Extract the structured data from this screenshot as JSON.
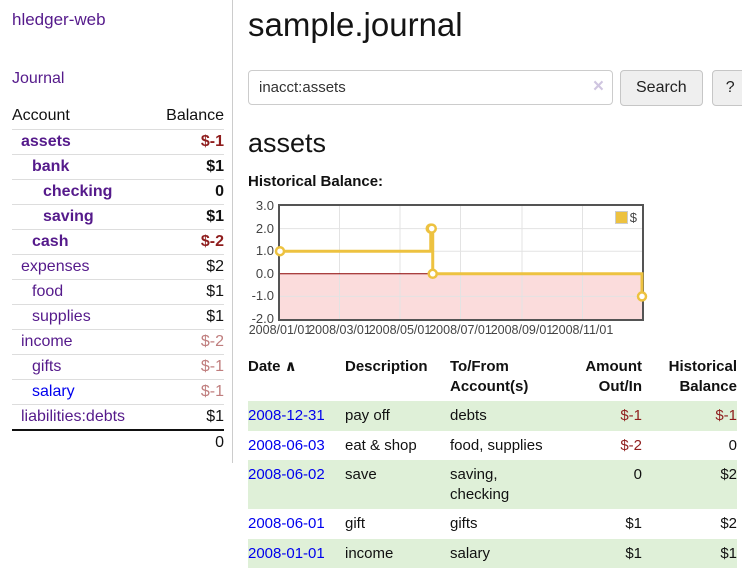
{
  "app": {
    "brand": "hledger-web"
  },
  "sidebar": {
    "nav_journal": "Journal",
    "accounts_table": {
      "col_account": "Account",
      "col_balance": "Balance",
      "rows": [
        {
          "name": "assets",
          "depth": 1,
          "bold": true,
          "balance": "$-1",
          "balance_tone": "neg-strong",
          "link_state": "visited"
        },
        {
          "name": "bank",
          "depth": 2,
          "bold": true,
          "balance": "$1",
          "balance_tone": "pos",
          "link_state": "visited"
        },
        {
          "name": "checking",
          "depth": 3,
          "bold": true,
          "balance": "0",
          "balance_tone": "pos",
          "link_state": "visited"
        },
        {
          "name": "saving",
          "depth": 3,
          "bold": true,
          "balance": "$1",
          "balance_tone": "pos",
          "link_state": "visited"
        },
        {
          "name": "cash",
          "depth": 2,
          "bold": true,
          "balance": "$-2",
          "balance_tone": "neg-strong",
          "link_state": "visited"
        },
        {
          "name": "expenses",
          "depth": 1,
          "bold": false,
          "balance": "$2",
          "balance_tone": "pos",
          "link_state": "visited"
        },
        {
          "name": "food",
          "depth": 2,
          "bold": false,
          "balance": "$1",
          "balance_tone": "pos",
          "link_state": "visited"
        },
        {
          "name": "supplies",
          "depth": 2,
          "bold": false,
          "balance": "$1",
          "balance_tone": "pos",
          "link_state": "visited"
        },
        {
          "name": "income",
          "depth": 1,
          "bold": false,
          "balance": "$-2",
          "balance_tone": "neg-soft",
          "link_state": "visited"
        },
        {
          "name": "gifts",
          "depth": 2,
          "bold": false,
          "balance": "$-1",
          "balance_tone": "neg-soft",
          "link_state": "visited"
        },
        {
          "name": "salary",
          "depth": 2,
          "bold": false,
          "balance": "$-1",
          "balance_tone": "neg-soft",
          "link_state": "unvisited"
        },
        {
          "name": "liabilities:debts",
          "depth": 1,
          "bold": false,
          "balance": "$1",
          "balance_tone": "pos",
          "link_state": "visited"
        }
      ],
      "total": "0"
    }
  },
  "header": {
    "title": "sample.journal"
  },
  "search": {
    "value": "inacct:assets",
    "clear_icon": "×",
    "search_button": "Search",
    "help_button": "?"
  },
  "account_view": {
    "heading": "assets",
    "chart_title": "Historical Balance:"
  },
  "chart_data": {
    "type": "line",
    "step": true,
    "title": "Historical Balance",
    "x_range": [
      "2008-01-01",
      "2008-12-31"
    ],
    "ylim": [
      -2,
      3
    ],
    "y_ticks": [
      "3.0",
      "2.0",
      "1.0",
      "0.0",
      "-1.0",
      "-2.0"
    ],
    "x_ticks": [
      {
        "date": "2008-01-01",
        "label": "2008/01/01"
      },
      {
        "date": "2008-03-01",
        "label": "2008/03/01"
      },
      {
        "date": "2008-05-01",
        "label": "2008/05/01"
      },
      {
        "date": "2008-07-01",
        "label": "2008/07/01"
      },
      {
        "date": "2008-09-01",
        "label": "2008/09/01"
      },
      {
        "date": "2008-11-01",
        "label": "2008/11/01"
      }
    ],
    "series": [
      {
        "name": "$",
        "color": "#edc240",
        "points": [
          [
            "2008-01-01",
            1
          ],
          [
            "2008-06-01",
            2
          ],
          [
            "2008-06-02",
            2
          ],
          [
            "2008-06-03",
            0
          ],
          [
            "2008-12-31",
            -1
          ]
        ]
      }
    ],
    "legend_position": "top-right",
    "grid": true,
    "gridline_color": "#e3e3e3",
    "negative_region_fill": "#fbdcdc",
    "zero_line_color": "#8b0000",
    "border_color": "#545454"
  },
  "register": {
    "columns": [
      {
        "id": "date",
        "line1": "Date",
        "line2": "",
        "align": "left",
        "sort_indicator": "∧"
      },
      {
        "id": "description",
        "line1": "Description",
        "line2": "",
        "align": "left"
      },
      {
        "id": "accounts",
        "line1": "To/From",
        "line2": "Account(s)",
        "align": "left"
      },
      {
        "id": "amount",
        "line1": "Amount",
        "line2": "Out/In",
        "align": "right"
      },
      {
        "id": "balance",
        "line1": "Historical",
        "line2": "Balance",
        "align": "right"
      }
    ],
    "rows": [
      {
        "date": "2008-12-31",
        "description": "pay off",
        "accounts": "debts",
        "amount": "$-1",
        "amount_tone": "neg",
        "balance": "$-1",
        "balance_tone": "neg"
      },
      {
        "date": "2008-06-03",
        "description": "eat & shop",
        "accounts": "food, supplies",
        "amount": "$-2",
        "amount_tone": "neg",
        "balance": "0",
        "balance_tone": "pos"
      },
      {
        "date": "2008-06-02",
        "description": "save",
        "accounts": "saving, checking",
        "amount": "0",
        "amount_tone": "pos",
        "balance": "$2",
        "balance_tone": "pos"
      },
      {
        "date": "2008-06-01",
        "description": "gift",
        "accounts": "gifts",
        "amount": "$1",
        "amount_tone": "pos",
        "balance": "$2",
        "balance_tone": "pos"
      },
      {
        "date": "2008-01-01",
        "description": "income",
        "accounts": "salary",
        "amount": "$1",
        "amount_tone": "pos",
        "balance": "$1",
        "balance_tone": "pos"
      }
    ]
  },
  "colors": {
    "link_visited": "#551a8b",
    "link_unvisited": "#0000ee",
    "negative_strong": "#8f1d1d",
    "negative_soft": "#bf7d7d",
    "row_highlight_green": "#dff0d8",
    "series_gold": "#edc240",
    "negative_region_pink": "#fbdcdc",
    "zero_line_red": "#8b0000"
  }
}
